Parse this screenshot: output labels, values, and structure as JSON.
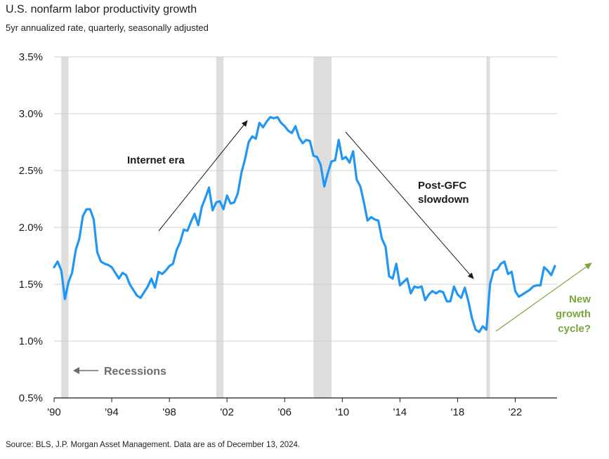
{
  "header": {
    "title": "U.S. nonfarm labor productivity growth",
    "subtitle": "5yr annualized rate, quarterly, seasonally adjusted"
  },
  "footer": {
    "source": "Source: BLS, J.P. Morgan Asset Management. Data are as of December 13, 2024."
  },
  "colors": {
    "line": "#2196f3",
    "recession": "#dedede",
    "grid": "#cfcfcf",
    "arrow": "#1a1a1a",
    "new_cycle": "#7aa63a",
    "recession_label": "#6b6b6b"
  },
  "chart_data": {
    "type": "line",
    "title": "U.S. nonfarm labor productivity growth",
    "subtitle": "5yr annualized rate, quarterly, seasonally adjusted",
    "xlabel": "",
    "ylabel": "",
    "xlim": [
      1990,
      2024.9
    ],
    "ylim": [
      0.5,
      3.5
    ],
    "y_ticks": [
      0.5,
      1.0,
      1.5,
      2.0,
      2.5,
      3.0,
      3.5
    ],
    "y_tick_labels": [
      "0.5%",
      "1.0%",
      "1.5%",
      "2.0%",
      "2.5%",
      "3.0%",
      "3.5%"
    ],
    "x_ticks": [
      1990,
      1994,
      1998,
      2002,
      2006,
      2010,
      2014,
      2018,
      2022
    ],
    "x_tick_labels": [
      "'90",
      "'94",
      "'98",
      "'02",
      "'06",
      "'10",
      "'14",
      "'18",
      "'22"
    ],
    "grid": "horizontal",
    "recessions": [
      [
        1990.5,
        1991.0
      ],
      [
        2001.25,
        2001.75
      ],
      [
        2008.0,
        2009.25
      ],
      [
        2020.0,
        2020.25
      ]
    ],
    "series": [
      {
        "values": [
          [
            1990.0,
            1.65
          ],
          [
            1990.25,
            1.7
          ],
          [
            1990.5,
            1.62
          ],
          [
            1990.75,
            1.37
          ],
          [
            1991.0,
            1.52
          ],
          [
            1991.25,
            1.6
          ],
          [
            1991.5,
            1.8
          ],
          [
            1991.75,
            1.9
          ],
          [
            1992.0,
            2.1
          ],
          [
            1992.25,
            2.16
          ],
          [
            1992.5,
            2.16
          ],
          [
            1992.75,
            2.07
          ],
          [
            1993.0,
            1.78
          ],
          [
            1993.25,
            1.7
          ],
          [
            1993.5,
            1.68
          ],
          [
            1993.75,
            1.67
          ],
          [
            1994.0,
            1.65
          ],
          [
            1994.25,
            1.6
          ],
          [
            1994.5,
            1.55
          ],
          [
            1994.75,
            1.6
          ],
          [
            1995.0,
            1.58
          ],
          [
            1995.25,
            1.5
          ],
          [
            1995.5,
            1.45
          ],
          [
            1995.75,
            1.4
          ],
          [
            1996.0,
            1.38
          ],
          [
            1996.25,
            1.43
          ],
          [
            1996.5,
            1.48
          ],
          [
            1996.75,
            1.55
          ],
          [
            1997.0,
            1.47
          ],
          [
            1997.25,
            1.61
          ],
          [
            1997.5,
            1.59
          ],
          [
            1997.75,
            1.62
          ],
          [
            1998.0,
            1.66
          ],
          [
            1998.25,
            1.68
          ],
          [
            1998.5,
            1.8
          ],
          [
            1998.75,
            1.87
          ],
          [
            1999.0,
            1.98
          ],
          [
            1999.25,
            1.97
          ],
          [
            1999.5,
            2.05
          ],
          [
            1999.75,
            2.12
          ],
          [
            2000.0,
            2.02
          ],
          [
            2000.25,
            2.18
          ],
          [
            2000.5,
            2.26
          ],
          [
            2000.75,
            2.35
          ],
          [
            2001.0,
            2.15
          ],
          [
            2001.25,
            2.22
          ],
          [
            2001.5,
            2.23
          ],
          [
            2001.75,
            2.16
          ],
          [
            2002.0,
            2.28
          ],
          [
            2002.25,
            2.21
          ],
          [
            2002.5,
            2.22
          ],
          [
            2002.75,
            2.3
          ],
          [
            2003.0,
            2.48
          ],
          [
            2003.25,
            2.6
          ],
          [
            2003.5,
            2.75
          ],
          [
            2003.75,
            2.8
          ],
          [
            2004.0,
            2.78
          ],
          [
            2004.25,
            2.92
          ],
          [
            2004.5,
            2.88
          ],
          [
            2004.75,
            2.93
          ],
          [
            2005.0,
            2.97
          ],
          [
            2005.25,
            2.96
          ],
          [
            2005.5,
            2.97
          ],
          [
            2005.75,
            2.92
          ],
          [
            2006.0,
            2.89
          ],
          [
            2006.25,
            2.85
          ],
          [
            2006.5,
            2.83
          ],
          [
            2006.75,
            2.89
          ],
          [
            2007.0,
            2.79
          ],
          [
            2007.25,
            2.74
          ],
          [
            2007.5,
            2.77
          ],
          [
            2007.75,
            2.76
          ],
          [
            2008.0,
            2.63
          ],
          [
            2008.25,
            2.62
          ],
          [
            2008.5,
            2.55
          ],
          [
            2008.75,
            2.36
          ],
          [
            2009.0,
            2.48
          ],
          [
            2009.25,
            2.58
          ],
          [
            2009.5,
            2.59
          ],
          [
            2009.75,
            2.77
          ],
          [
            2010.0,
            2.6
          ],
          [
            2010.25,
            2.62
          ],
          [
            2010.5,
            2.57
          ],
          [
            2010.75,
            2.67
          ],
          [
            2011.0,
            2.42
          ],
          [
            2011.25,
            2.36
          ],
          [
            2011.5,
            2.22
          ],
          [
            2011.75,
            2.06
          ],
          [
            2012.0,
            2.09
          ],
          [
            2012.25,
            2.07
          ],
          [
            2012.5,
            2.06
          ],
          [
            2012.75,
            1.9
          ],
          [
            2013.0,
            1.83
          ],
          [
            2013.25,
            1.57
          ],
          [
            2013.5,
            1.55
          ],
          [
            2013.75,
            1.68
          ],
          [
            2014.0,
            1.49
          ],
          [
            2014.25,
            1.52
          ],
          [
            2014.5,
            1.55
          ],
          [
            2014.75,
            1.42
          ],
          [
            2015.0,
            1.48
          ],
          [
            2015.25,
            1.47
          ],
          [
            2015.5,
            1.48
          ],
          [
            2015.75,
            1.36
          ],
          [
            2016.0,
            1.41
          ],
          [
            2016.25,
            1.44
          ],
          [
            2016.5,
            1.42
          ],
          [
            2016.75,
            1.44
          ],
          [
            2017.0,
            1.43
          ],
          [
            2017.25,
            1.35
          ],
          [
            2017.5,
            1.35
          ],
          [
            2017.75,
            1.48
          ],
          [
            2018.0,
            1.41
          ],
          [
            2018.25,
            1.38
          ],
          [
            2018.5,
            1.47
          ],
          [
            2018.75,
            1.35
          ],
          [
            2019.0,
            1.2
          ],
          [
            2019.25,
            1.1
          ],
          [
            2019.5,
            1.08
          ],
          [
            2019.75,
            1.13
          ],
          [
            2020.0,
            1.1
          ],
          [
            2020.25,
            1.5
          ],
          [
            2020.5,
            1.62
          ],
          [
            2020.75,
            1.63
          ],
          [
            2021.0,
            1.68
          ],
          [
            2021.25,
            1.7
          ],
          [
            2021.5,
            1.59
          ],
          [
            2021.75,
            1.61
          ],
          [
            2022.0,
            1.44
          ],
          [
            2022.25,
            1.39
          ],
          [
            2022.5,
            1.41
          ],
          [
            2022.75,
            1.43
          ],
          [
            2023.0,
            1.45
          ],
          [
            2023.25,
            1.48
          ],
          [
            2023.5,
            1.49
          ],
          [
            2023.75,
            1.49
          ],
          [
            2024.0,
            1.65
          ],
          [
            2024.25,
            1.62
          ],
          [
            2024.5,
            1.58
          ],
          [
            2024.75,
            1.66
          ]
        ]
      }
    ],
    "annotations": [
      {
        "text": "Internet era"
      },
      {
        "text": "Post-GFC"
      },
      {
        "text": "slowdown"
      },
      {
        "text": "New"
      },
      {
        "text": "growth"
      },
      {
        "text": "cycle?"
      },
      {
        "text": "Recessions"
      }
    ]
  }
}
